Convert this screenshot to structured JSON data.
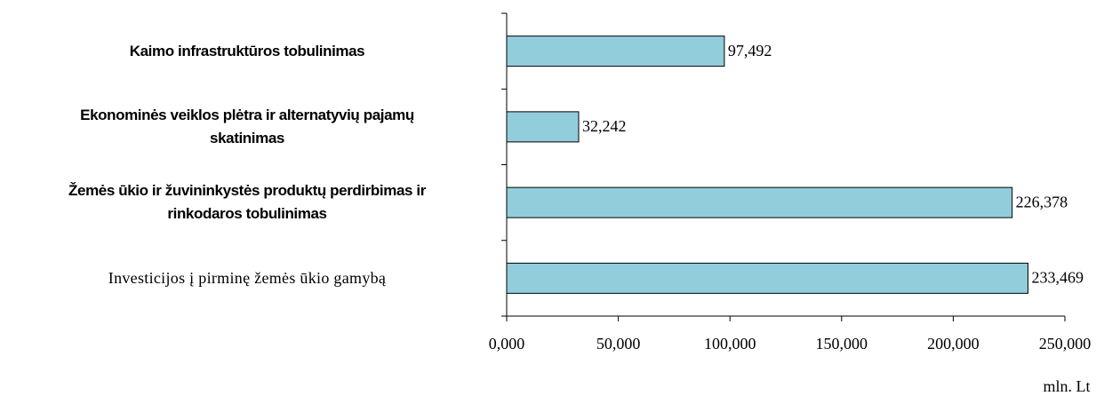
{
  "chart_data": {
    "type": "bar",
    "orientation": "horizontal",
    "categories": [
      "Kaimo infrastruktūros tobulinimas",
      "Ekonominės veiklos plėtra ir alternatyvių pajamų\nskatinimas",
      "Žemės ūkio ir žuvininkystės produktų perdirbimas ir\nrinkodaros tobulinimas",
      "Investicijos į pirminę žemės ūkio gamybą"
    ],
    "values": [
      97.492,
      32.242,
      226.378,
      233.469
    ],
    "value_labels": [
      "97,492",
      "32,242",
      "226,378",
      "233,469"
    ],
    "color": "#92cddc",
    "xlim": [
      0,
      250
    ],
    "xticks": [
      {
        "value": 0,
        "label": "0,000"
      },
      {
        "value": 50,
        "label": "50,000"
      },
      {
        "value": 100,
        "label": "100,000"
      },
      {
        "value": 150,
        "label": "150,000"
      },
      {
        "value": 200,
        "label": "200,000"
      },
      {
        "value": 250,
        "label": "250,000"
      }
    ],
    "xlabel": "mln. Lt"
  }
}
